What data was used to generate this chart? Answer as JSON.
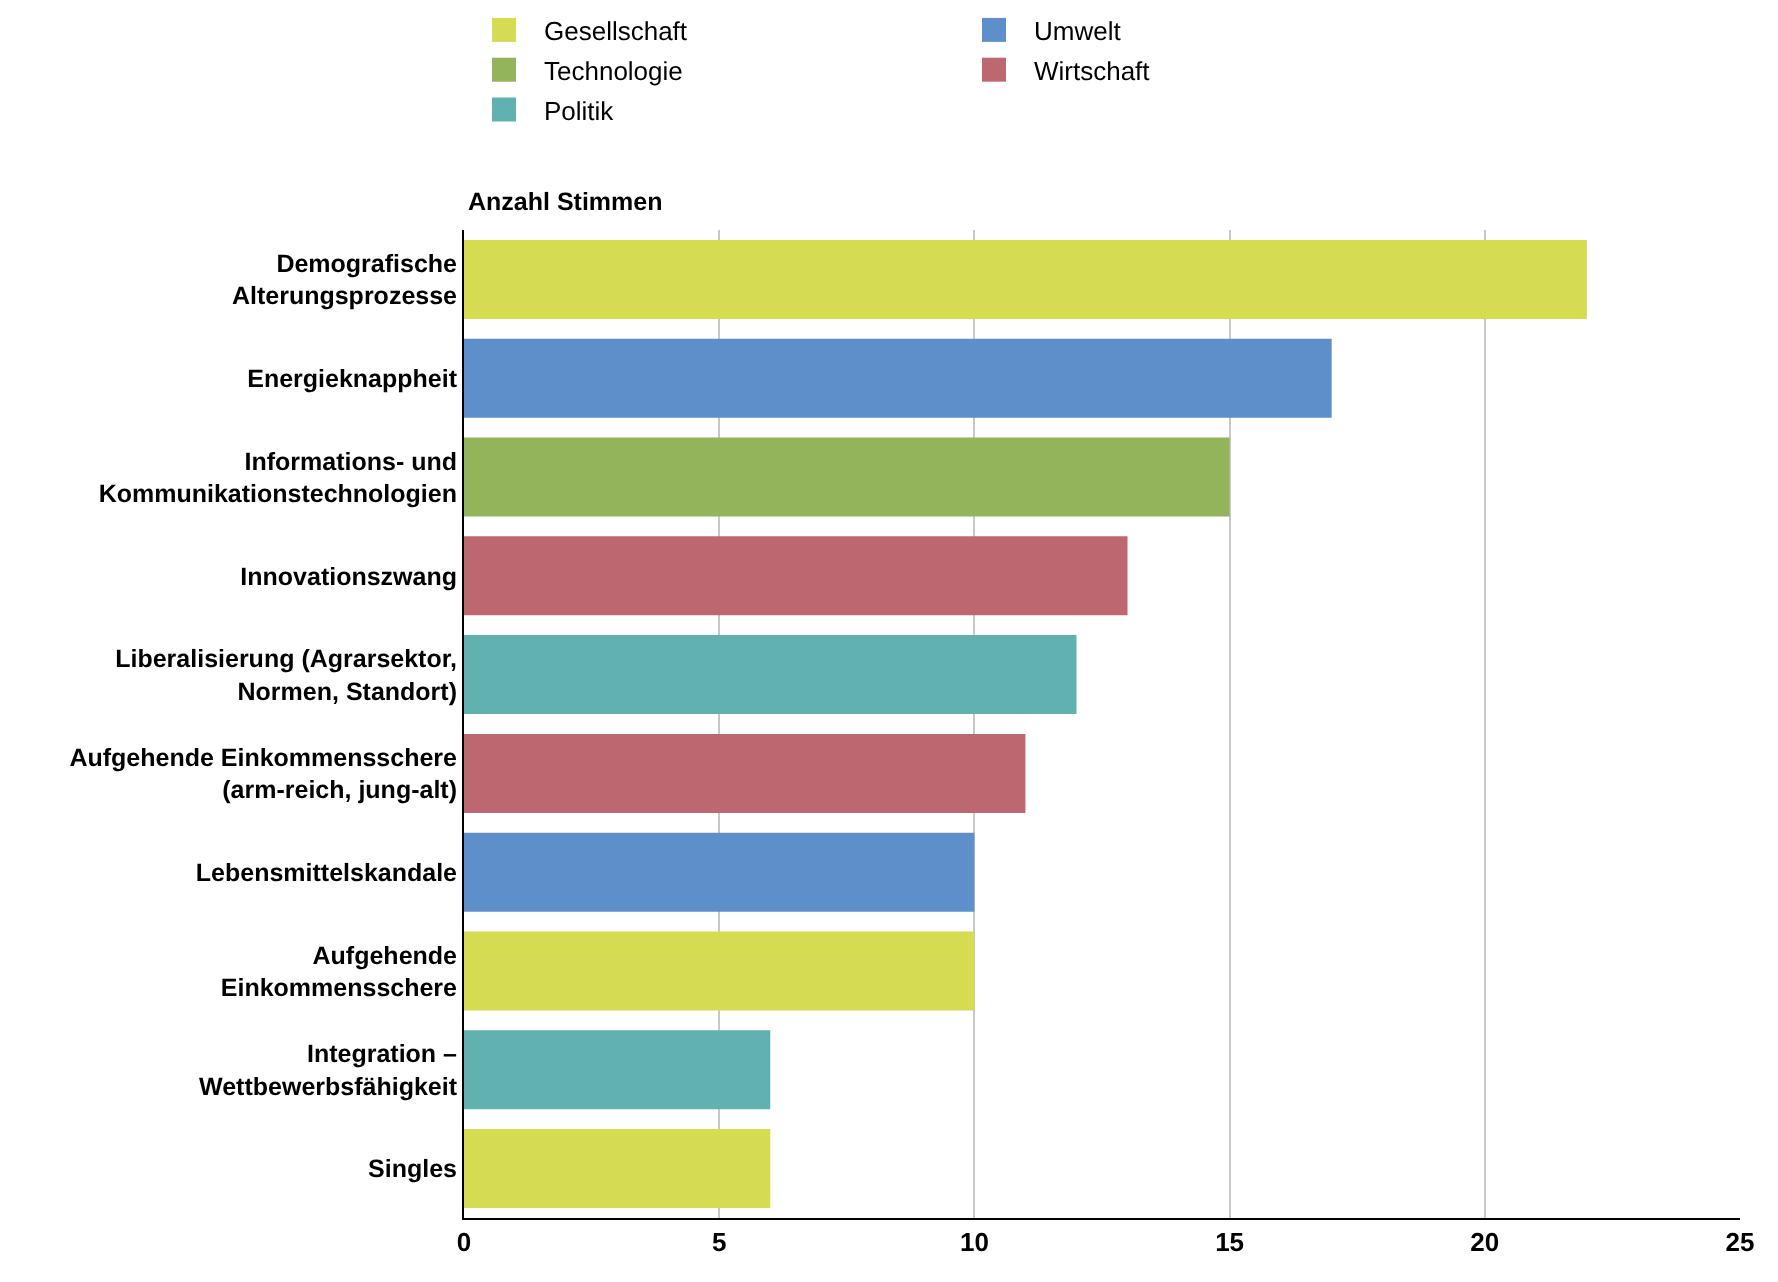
{
  "chart_data": {
    "type": "bar",
    "orientation": "horizontal",
    "xlabel": "Anzahl Stimmen",
    "categories": [
      "Demografische\nAlterungsprozesse",
      "Energieknappheit",
      "Informations- und\nKommunikationstechnologien",
      "Innovationszwang",
      "Liberalisierung (Agrarsektor,\nNormen, Standort)",
      "Aufgehende Einkommensschere\n(arm-reich, jung-alt)",
      "Lebensmittelskandale",
      "Aufgehende\nEinkommensschere",
      "Integration –\nWettbewerbsfähigkeit",
      "Singles"
    ],
    "series": [
      {
        "name": "Gesellschaft",
        "color": "#d6dc52",
        "values": [
          22,
          null,
          null,
          null,
          null,
          null,
          null,
          10,
          null,
          6
        ]
      },
      {
        "name": "Umwelt",
        "color": "#5f8fcb",
        "values": [
          null,
          17,
          null,
          null,
          null,
          null,
          10,
          null,
          null,
          null
        ]
      },
      {
        "name": "Technologie",
        "color": "#93b45a",
        "values": [
          null,
          null,
          15,
          null,
          null,
          null,
          null,
          null,
          null,
          null
        ]
      },
      {
        "name": "Wirtschaft",
        "color": "#bd6870",
        "values": [
          null,
          null,
          null,
          13,
          null,
          11,
          null,
          null,
          null,
          null
        ]
      },
      {
        "name": "Politik",
        "color": "#62b1b1",
        "values": [
          null,
          null,
          null,
          null,
          12,
          null,
          null,
          null,
          6,
          null
        ]
      }
    ],
    "xlim": [
      0,
      25
    ],
    "xticks": [
      0,
      5,
      10,
      15,
      20,
      25
    ],
    "grid": "x",
    "legend": "top"
  }
}
